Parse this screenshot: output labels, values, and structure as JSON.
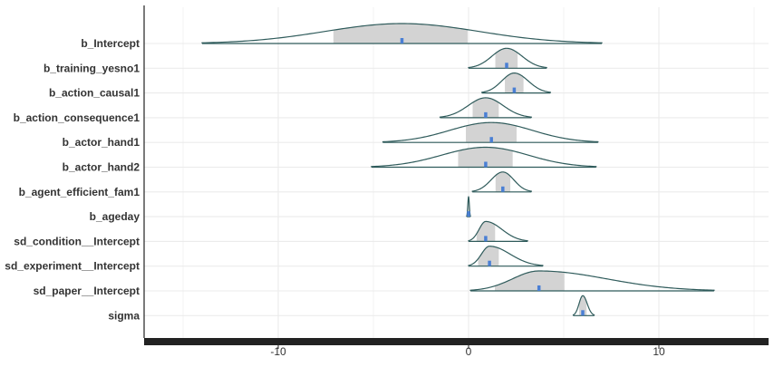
{
  "chart_data": {
    "type": "area",
    "subtype": "posterior-density-ridge",
    "title": "",
    "xlabel": "",
    "ylabel": "",
    "xlim": [
      -17,
      16
    ],
    "x_ticks": [
      -10,
      0,
      10
    ],
    "x_tick_labels": [
      "-10",
      "0",
      "10"
    ],
    "grid": true,
    "legend": "none",
    "colors": {
      "outline": "#2f5b5b",
      "inner_fill": "#d3d3d3",
      "point": "#4a7fd4",
      "grid": "#ebebeb",
      "axis": "#222222",
      "text": "#333333"
    },
    "series": [
      {
        "name": "b_Intercept",
        "median": -3.5,
        "inner": [
          -7.2,
          0.0
        ],
        "outer": [
          -14.0,
          7.0
        ]
      },
      {
        "name": "b_training_yesno1",
        "median": 2.0,
        "inner": [
          1.4,
          2.6
        ],
        "outer": [
          0.0,
          4.1
        ]
      },
      {
        "name": "b_action_causal1",
        "median": 2.4,
        "inner": [
          1.9,
          2.9
        ],
        "outer": [
          0.7,
          4.3
        ]
      },
      {
        "name": "b_action_consequence1",
        "median": 0.9,
        "inner": [
          0.2,
          1.6
        ],
        "outer": [
          -1.5,
          3.3
        ]
      },
      {
        "name": "b_actor_hand1",
        "median": 1.2,
        "inner": [
          -0.2,
          2.6
        ],
        "outer": [
          -4.5,
          6.8
        ]
      },
      {
        "name": "b_actor_hand2",
        "median": 0.9,
        "inner": [
          -0.6,
          2.4
        ],
        "outer": [
          -5.1,
          6.7
        ]
      },
      {
        "name": "b_agent_efficient_fam1",
        "median": 1.8,
        "inner": [
          1.4,
          2.2
        ],
        "outer": [
          0.2,
          3.3
        ]
      },
      {
        "name": "b_ageday",
        "median": 0.0,
        "inner": [
          -0.03,
          0.03
        ],
        "outer": [
          -0.1,
          0.1
        ]
      },
      {
        "name": "sd_condition__Intercept",
        "median": 0.9,
        "inner": [
          0.4,
          1.4
        ],
        "outer": [
          0.0,
          3.1
        ]
      },
      {
        "name": "sd_experiment__Intercept",
        "median": 1.1,
        "inner": [
          0.5,
          1.6
        ],
        "outer": [
          0.0,
          3.9
        ]
      },
      {
        "name": "sd_paper__Intercept",
        "median": 3.7,
        "inner": [
          1.3,
          5.1
        ],
        "outer": [
          0.1,
          12.9
        ]
      },
      {
        "name": "sigma",
        "median": 6.0,
        "inner": [
          5.8,
          6.2
        ],
        "outer": [
          5.5,
          6.6
        ]
      }
    ]
  }
}
